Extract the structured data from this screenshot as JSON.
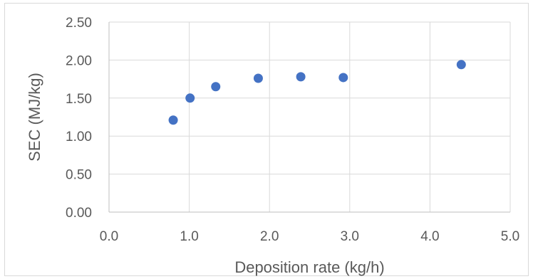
{
  "chart_data": {
    "type": "scatter",
    "title": "",
    "xlabel": "Deposition rate (kg/h)",
    "ylabel": "SEC (MJ/kg)",
    "xlim": [
      0,
      5
    ],
    "ylim": [
      0,
      2.5
    ],
    "x_ticks": [
      "0.0",
      "1.0",
      "2.0",
      "3.0",
      "4.0",
      "5.0"
    ],
    "y_ticks": [
      "0.00",
      "0.50",
      "1.00",
      "1.50",
      "2.00",
      "2.50"
    ],
    "grid": true,
    "legend": "none",
    "marker_color": "#4472c4",
    "series": [
      {
        "x": [
          0.8,
          1.01,
          1.33,
          1.86,
          2.39,
          2.92,
          4.39
        ],
        "y": [
          1.21,
          1.5,
          1.65,
          1.76,
          1.78,
          1.77,
          1.94
        ]
      }
    ]
  }
}
